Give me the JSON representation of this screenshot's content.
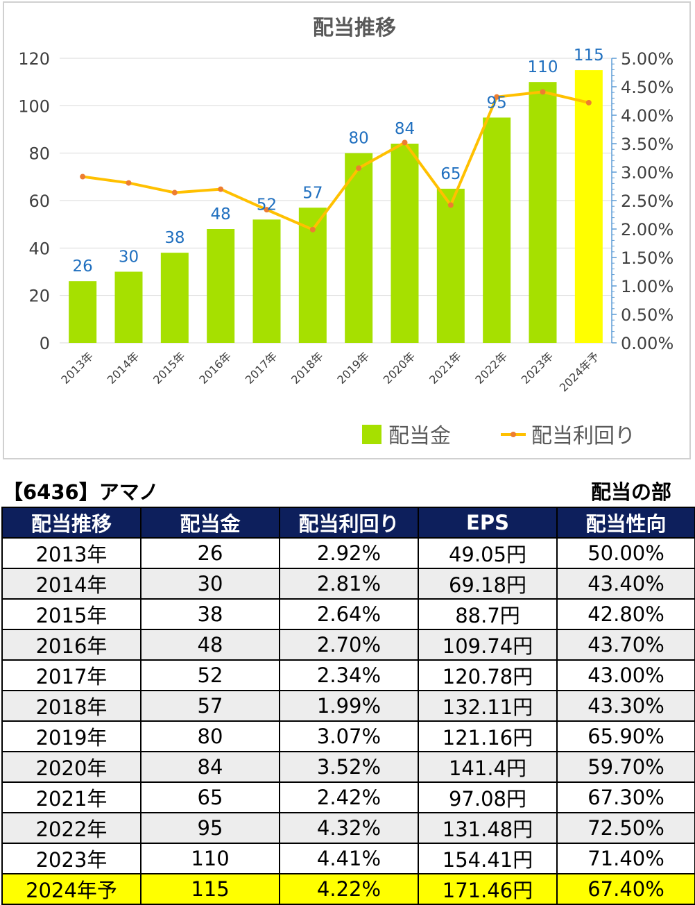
{
  "chart_data": {
    "type": "bar",
    "title": "配当推移",
    "categories": [
      "2013年",
      "2014年",
      "2015年",
      "2016年",
      "2017年",
      "2018年",
      "2019年",
      "2020年",
      "2021年",
      "2022年",
      "2023年",
      "2024年予"
    ],
    "series": [
      {
        "name": "配当金",
        "type": "bar",
        "axis": "left",
        "values": [
          26,
          30,
          38,
          48,
          52,
          57,
          80,
          84,
          65,
          95,
          110,
          115
        ],
        "color": "#a6e000",
        "highlight_color": "#ffff00",
        "highlight_index": 11
      },
      {
        "name": "配当利回り",
        "type": "line",
        "axis": "right",
        "values": [
          2.92,
          2.81,
          2.64,
          2.7,
          2.34,
          1.99,
          3.07,
          3.52,
          2.42,
          4.32,
          4.41,
          4.22
        ],
        "color": "#ffc000",
        "marker_color": "#ed7d31"
      }
    ],
    "y_left": {
      "min": 0,
      "max": 120,
      "ticks": [
        0,
        20,
        40,
        60,
        80,
        100,
        120
      ]
    },
    "y_right": {
      "min": 0,
      "max": 5,
      "ticks": [
        "0.00%",
        "0.50%",
        "1.00%",
        "1.50%",
        "2.00%",
        "2.50%",
        "3.00%",
        "3.50%",
        "4.00%",
        "4.50%",
        "5.00%"
      ]
    },
    "data_label_color": "#1f6fbf",
    "grid": true,
    "legend_position": "bottom-right"
  },
  "table": {
    "company": "【6436】アマノ",
    "section": "配当の部",
    "headers": [
      "配当推移",
      "配当金",
      "配当利回り",
      "EPS",
      "配当性向"
    ],
    "rows": [
      [
        "2013年",
        "26",
        "2.92%",
        "49.05円",
        "50.00%"
      ],
      [
        "2014年",
        "30",
        "2.81%",
        "69.18円",
        "43.40%"
      ],
      [
        "2015年",
        "38",
        "2.64%",
        "88.7円",
        "42.80%"
      ],
      [
        "2016年",
        "48",
        "2.70%",
        "109.74円",
        "43.70%"
      ],
      [
        "2017年",
        "52",
        "2.34%",
        "120.78円",
        "43.00%"
      ],
      [
        "2018年",
        "57",
        "1.99%",
        "132.11円",
        "43.30%"
      ],
      [
        "2019年",
        "80",
        "3.07%",
        "121.16円",
        "65.90%"
      ],
      [
        "2020年",
        "84",
        "3.52%",
        "141.4円",
        "59.70%"
      ],
      [
        "2021年",
        "65",
        "2.42%",
        "97.08円",
        "67.30%"
      ],
      [
        "2022年",
        "95",
        "4.32%",
        "131.48円",
        "72.50%"
      ],
      [
        "2023年",
        "110",
        "4.41%",
        "154.41円",
        "71.40%"
      ],
      [
        "2024年予",
        "115",
        "4.22%",
        "171.46円",
        "67.40%"
      ]
    ],
    "colors": {
      "header_bg": "#0d1f5c",
      "header_text": "#ffffff",
      "alt_row": "#ededed",
      "forecast_row": "#ffff00"
    }
  }
}
